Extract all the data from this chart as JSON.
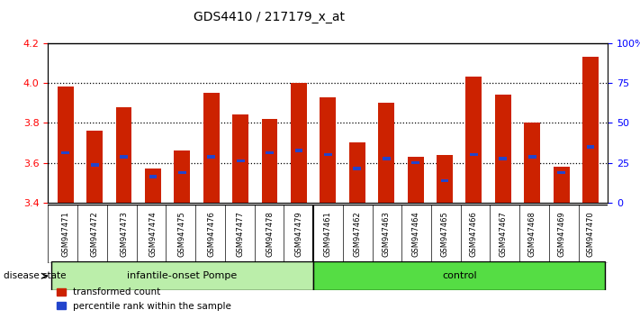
{
  "title": "GDS4410 / 217179_x_at",
  "samples": [
    "GSM947471",
    "GSM947472",
    "GSM947473",
    "GSM947474",
    "GSM947475",
    "GSM947476",
    "GSM947477",
    "GSM947478",
    "GSM947479",
    "GSM947461",
    "GSM947462",
    "GSM947463",
    "GSM947464",
    "GSM947465",
    "GSM947466",
    "GSM947467",
    "GSM947468",
    "GSM947469",
    "GSM947470"
  ],
  "red_values": [
    3.98,
    3.76,
    3.88,
    3.57,
    3.66,
    3.95,
    3.84,
    3.82,
    4.0,
    3.93,
    3.7,
    3.9,
    3.63,
    3.64,
    4.03,
    3.94,
    3.8,
    3.58,
    4.13
  ],
  "blue_values": [
    3.65,
    3.59,
    3.63,
    3.53,
    3.55,
    3.63,
    3.61,
    3.65,
    3.66,
    3.64,
    3.57,
    3.62,
    3.6,
    3.51,
    3.64,
    3.62,
    3.63,
    3.55,
    3.68
  ],
  "group_labels": [
    "infantile-onset Pompe",
    "control"
  ],
  "group_sizes": [
    9,
    10
  ],
  "group_colors_light": [
    "#bbeeaa",
    "#55dd44"
  ],
  "ymin": 3.4,
  "ymax": 4.2,
  "yticks": [
    3.4,
    3.6,
    3.8,
    4.0,
    4.2
  ],
  "right_yticks": [
    0,
    25,
    50,
    75,
    100
  ],
  "right_ylabels": [
    "0",
    "25",
    "50",
    "75",
    "100%"
  ],
  "bar_color": "#cc2200",
  "blue_color": "#2244cc",
  "legend_items": [
    "transformed count",
    "percentile rank within the sample"
  ]
}
